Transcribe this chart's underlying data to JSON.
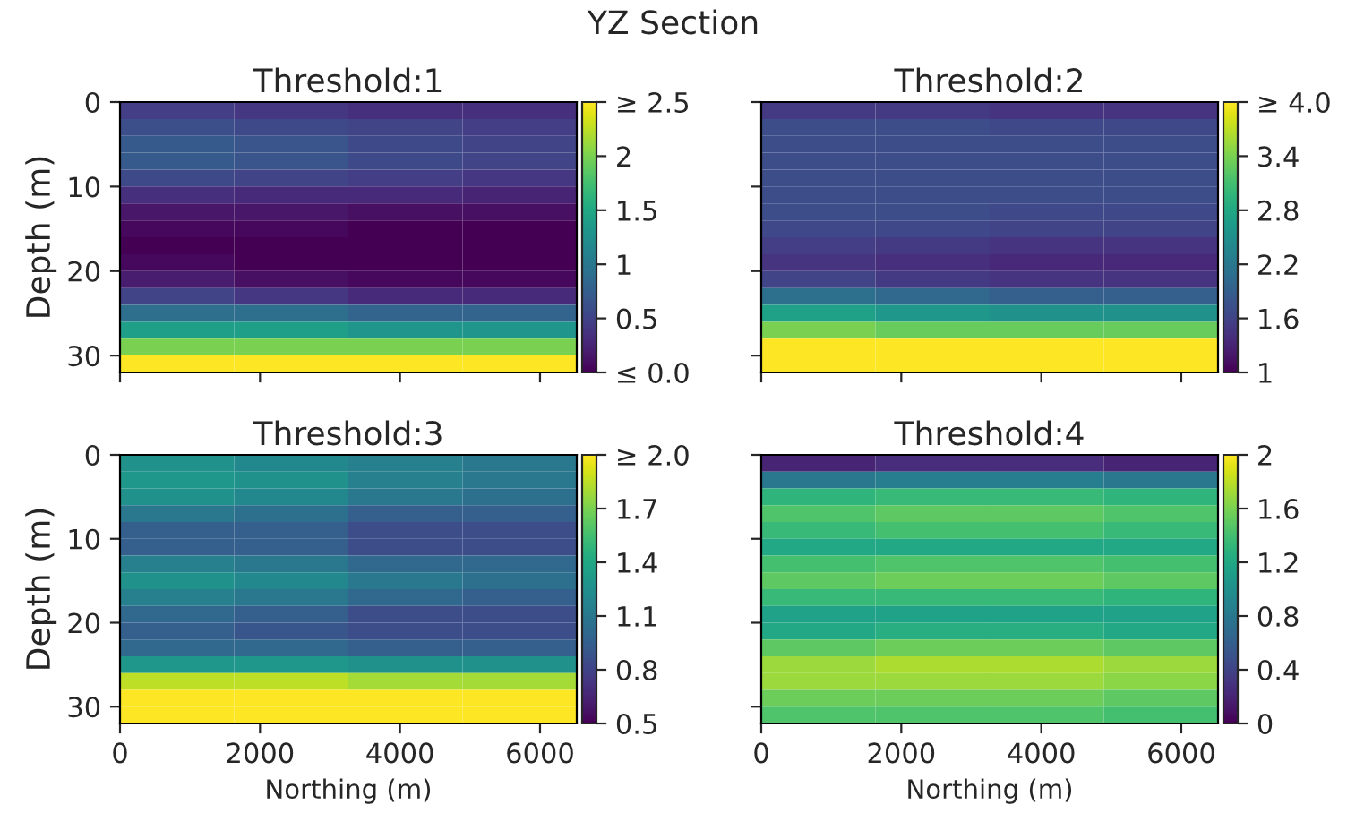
{
  "chart_data": [
    {
      "type": "heatmap",
      "title": "Threshold:1",
      "ylabel": "Depth (m)",
      "annotations": [
        "YZ Section"
      ],
      "tick_labels": "y",
      "xlim": [
        0,
        6525
      ],
      "ylim": [
        32,
        0
      ],
      "xticks": [
        0,
        2000,
        4000,
        6000
      ],
      "yticks": [
        0,
        10,
        20,
        30
      ],
      "clim": [
        0,
        2.5
      ],
      "cticks": [
        {
          "value": 0,
          "label": "≤ 0.0"
        },
        {
          "value": 0.5,
          "label": "0.5"
        },
        {
          "value": 1,
          "label": "1"
        },
        {
          "value": 1.5,
          "label": "1.5"
        },
        {
          "value": 2,
          "label": "2"
        },
        {
          "value": 2.5,
          "label": "≥ 2.5"
        }
      ],
      "cells": [
        [
          0.45,
          0.4,
          0.35,
          0.35
        ],
        [
          0.6,
          0.55,
          0.5,
          0.45
        ],
        [
          0.7,
          0.65,
          0.55,
          0.5
        ],
        [
          0.7,
          0.65,
          0.55,
          0.5
        ],
        [
          0.55,
          0.5,
          0.45,
          0.4
        ],
        [
          0.35,
          0.3,
          0.3,
          0.25
        ],
        [
          0.15,
          0.15,
          0.1,
          0.1
        ],
        [
          0.05,
          0.05,
          0.0,
          0.0
        ],
        [
          0.0,
          0.0,
          0.0,
          0.0
        ],
        [
          0.05,
          0.0,
          0.0,
          0.0
        ],
        [
          0.2,
          0.1,
          0.05,
          0.05
        ],
        [
          0.5,
          0.4,
          0.3,
          0.3
        ],
        [
          0.9,
          0.9,
          0.8,
          0.8
        ],
        [
          1.4,
          1.4,
          1.3,
          1.3
        ],
        [
          2.0,
          2.0,
          2.0,
          2.0
        ],
        [
          2.5,
          2.5,
          2.5,
          2.5
        ]
      ]
    },
    {
      "type": "heatmap",
      "title": "Threshold:2",
      "tick_labels": false,
      "xlim": [
        0,
        6525
      ],
      "ylim": [
        32,
        0
      ],
      "xticks": [
        0,
        2000,
        4000,
        6000
      ],
      "yticks": [
        0,
        10,
        20,
        30
      ],
      "clim": [
        1,
        4
      ],
      "cticks": [
        {
          "value": 1,
          "label": "1"
        },
        {
          "value": 1.6,
          "label": "1.6"
        },
        {
          "value": 2.2,
          "label": "2.2"
        },
        {
          "value": 2.8,
          "label": "2.8"
        },
        {
          "value": 3.4,
          "label": "3.4"
        },
        {
          "value": 4,
          "label": "≥ 4.0"
        }
      ],
      "cells": [
        [
          1.5,
          1.5,
          1.45,
          1.45
        ],
        [
          1.7,
          1.7,
          1.65,
          1.65
        ],
        [
          1.7,
          1.7,
          1.7,
          1.7
        ],
        [
          1.7,
          1.7,
          1.7,
          1.7
        ],
        [
          1.7,
          1.7,
          1.7,
          1.7
        ],
        [
          1.7,
          1.7,
          1.7,
          1.7
        ],
        [
          1.7,
          1.7,
          1.65,
          1.65
        ],
        [
          1.65,
          1.65,
          1.6,
          1.6
        ],
        [
          1.55,
          1.5,
          1.45,
          1.45
        ],
        [
          1.45,
          1.4,
          1.35,
          1.35
        ],
        [
          1.6,
          1.5,
          1.45,
          1.45
        ],
        [
          2.1,
          2.0,
          1.9,
          1.9
        ],
        [
          2.7,
          2.6,
          2.5,
          2.5
        ],
        [
          3.4,
          3.3,
          3.3,
          3.3
        ],
        [
          4.0,
          4.0,
          4.0,
          4.0
        ],
        [
          4.0,
          4.0,
          4.0,
          4.0
        ]
      ]
    },
    {
      "type": "heatmap",
      "title": "Threshold:3",
      "xlabel": "Northing (m)",
      "ylabel": "Depth (m)",
      "xlim": [
        0,
        6525
      ],
      "ylim": [
        32,
        0
      ],
      "xticks": [
        0,
        2000,
        4000,
        6000
      ],
      "yticks": [
        0,
        10,
        20,
        30
      ],
      "clim": [
        0.5,
        2
      ],
      "cticks": [
        {
          "value": 0.5,
          "label": "0.5"
        },
        {
          "value": 0.8,
          "label": "0.8"
        },
        {
          "value": 1.1,
          "label": "1.1"
        },
        {
          "value": 1.4,
          "label": "1.4"
        },
        {
          "value": 1.7,
          "label": "1.7"
        },
        {
          "value": 2,
          "label": "≥ 2.0"
        }
      ],
      "cells": [
        [
          1.25,
          1.2,
          1.15,
          1.1
        ],
        [
          1.3,
          1.25,
          1.15,
          1.1
        ],
        [
          1.25,
          1.2,
          1.1,
          1.05
        ],
        [
          1.1,
          1.05,
          0.95,
          0.95
        ],
        [
          0.95,
          0.95,
          0.85,
          0.85
        ],
        [
          0.95,
          0.95,
          0.85,
          0.85
        ],
        [
          1.15,
          1.1,
          1.0,
          1.0
        ],
        [
          1.25,
          1.2,
          1.1,
          1.05
        ],
        [
          1.15,
          1.1,
          1.0,
          0.95
        ],
        [
          1.0,
          0.95,
          0.85,
          0.85
        ],
        [
          0.95,
          0.9,
          0.85,
          0.85
        ],
        [
          1.0,
          1.0,
          0.95,
          0.95
        ],
        [
          1.3,
          1.3,
          1.25,
          1.25
        ],
        [
          1.85,
          1.85,
          1.8,
          1.8
        ],
        [
          2.0,
          2.0,
          2.0,
          2.0
        ],
        [
          2.0,
          2.0,
          2.0,
          2.0
        ]
      ]
    },
    {
      "type": "heatmap",
      "title": "Threshold:4",
      "xlabel": "Northing (m)",
      "tick_labels": "x",
      "xlim": [
        0,
        6525
      ],
      "ylim": [
        32,
        0
      ],
      "xticks": [
        0,
        2000,
        4000,
        6000
      ],
      "yticks": [
        0,
        10,
        20,
        30
      ],
      "clim": [
        0,
        2
      ],
      "cticks": [
        0,
        0.4,
        0.8,
        1.2,
        1.6,
        2
      ],
      "cells": [
        [
          0.2,
          0.25,
          0.25,
          0.2
        ],
        [
          0.8,
          0.85,
          0.85,
          0.8
        ],
        [
          1.3,
          1.35,
          1.35,
          1.3
        ],
        [
          1.45,
          1.5,
          1.5,
          1.45
        ],
        [
          1.35,
          1.4,
          1.4,
          1.35
        ],
        [
          1.2,
          1.2,
          1.2,
          1.2
        ],
        [
          1.4,
          1.45,
          1.45,
          1.4
        ],
        [
          1.5,
          1.55,
          1.55,
          1.5
        ],
        [
          1.35,
          1.35,
          1.35,
          1.3
        ],
        [
          1.15,
          1.15,
          1.15,
          1.15
        ],
        [
          1.2,
          1.25,
          1.25,
          1.2
        ],
        [
          1.5,
          1.55,
          1.55,
          1.5
        ],
        [
          1.7,
          1.75,
          1.75,
          1.7
        ],
        [
          1.7,
          1.7,
          1.7,
          1.65
        ],
        [
          1.55,
          1.55,
          1.55,
          1.5
        ],
        [
          1.45,
          1.45,
          1.45,
          1.4
        ]
      ]
    }
  ]
}
